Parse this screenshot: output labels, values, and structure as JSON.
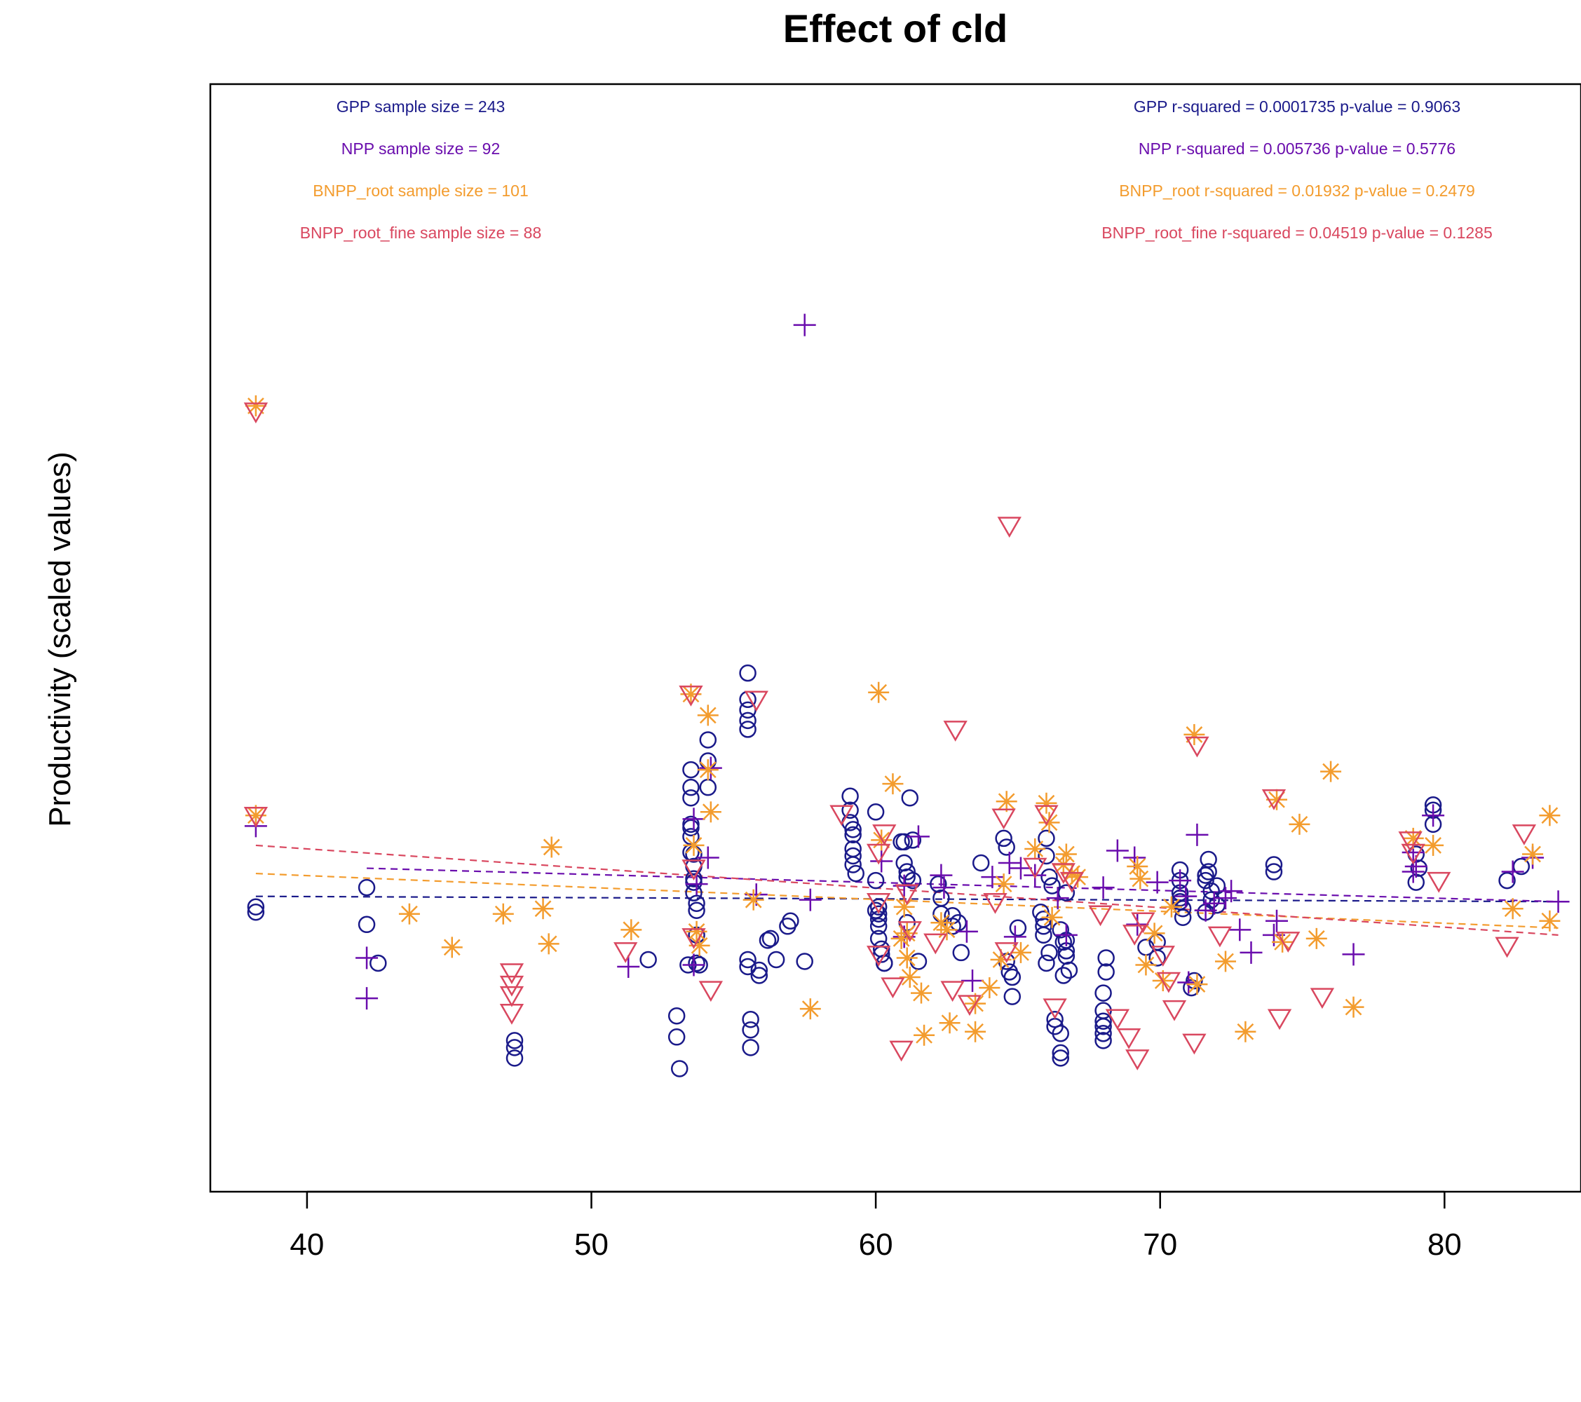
{
  "chart_data": {
    "type": "scatter",
    "title": "Effect of cld",
    "xlabel": "",
    "ylabel": "Productivity (scaled values)",
    "xlim": [
      36.6,
      84.8
    ],
    "ylim": [
      -1.7,
      4.6
    ],
    "xticks": [
      40,
      50,
      60,
      70,
      80
    ],
    "yticks_shown": false,
    "colors": {
      "GPP": "#1A1A8A",
      "NPP": "#6A0DAD",
      "BNPP_root": "#F39C2E",
      "BNPP_root_fine": "#D9475F"
    },
    "stats": {
      "sample_size": [
        {
          "series": "GPP",
          "text": "GPP sample size = 243"
        },
        {
          "series": "NPP",
          "text": "NPP sample size = 92"
        },
        {
          "series": "BNPP_root",
          "text": "BNPP_root sample size = 101"
        },
        {
          "series": "BNPP_root_fine",
          "text": "BNPP_root_fine sample size = 88"
        }
      ],
      "fit": [
        {
          "series": "GPP",
          "text": "GPP r-squared =  0.0001735 p-value =  0.9063"
        },
        {
          "series": "NPP",
          "text": "NPP r-squared =  0.005736 p-value =  0.5776"
        },
        {
          "series": "BNPP_root",
          "text": "BNPP_root r-squared =  0.01932 p-value =  0.2479"
        },
        {
          "series": "BNPP_root_fine",
          "text": "BNPP_root_fine r-squared =  0.04519 p-value =  0.1285"
        }
      ]
    },
    "fit_lines": [
      {
        "series": "GPP",
        "x": [
          38.2,
          84.0
        ],
        "y": [
          -0.02,
          -0.05
        ]
      },
      {
        "series": "NPP",
        "x": [
          42.1,
          84.0
        ],
        "y": [
          0.14,
          -0.05
        ]
      },
      {
        "series": "BNPP_root",
        "x": [
          38.2,
          84.0
        ],
        "y": [
          0.11,
          -0.2
        ]
      },
      {
        "series": "BNPP_root_fine",
        "x": [
          38.2,
          84.0
        ],
        "y": [
          0.27,
          -0.24
        ]
      }
    ],
    "series": [
      {
        "name": "GPP",
        "marker": "circle",
        "x": [
          38.2,
          38.2,
          42.1,
          42.1,
          42.5,
          47.3,
          47.3,
          47.3,
          52.0,
          53.0,
          53.0,
          53.1,
          53.4,
          53.5,
          53.5,
          53.5,
          53.5,
          53.5,
          53.5,
          53.5,
          53.6,
          53.6,
          53.6,
          53.6,
          53.6,
          53.7,
          53.7,
          53.7,
          53.7,
          53.8,
          54.1,
          54.1,
          54.1,
          55.5,
          55.5,
          55.5,
          55.5,
          55.5,
          55.5,
          55.5,
          55.6,
          55.6,
          55.6,
          55.9,
          55.9,
          56.2,
          56.3,
          56.5,
          56.9,
          57.0,
          57.5,
          59.1,
          59.1,
          59.1,
          59.2,
          59.2,
          59.2,
          59.2,
          59.2,
          59.3,
          60.0,
          60.0,
          60.0,
          60.1,
          60.1,
          60.1,
          60.1,
          60.1,
          60.2,
          60.2,
          60.3,
          60.3,
          60.9,
          61.0,
          61.0,
          61.1,
          61.1,
          61.1,
          61.2,
          61.3,
          61.3,
          61.5,
          62.2,
          62.3,
          62.3,
          62.7,
          62.7,
          62.9,
          63.0,
          63.7,
          64.5,
          64.6,
          64.6,
          64.7,
          64.8,
          64.8,
          65.0,
          65.8,
          65.9,
          65.9,
          65.9,
          66.0,
          66.0,
          66.0,
          66.1,
          66.1,
          66.2,
          66.3,
          66.3,
          66.5,
          66.5,
          66.5,
          66.5,
          66.6,
          66.6,
          66.7,
          66.7,
          66.7,
          66.7,
          66.8,
          68.0,
          68.0,
          68.0,
          68.0,
          68.0,
          68.0,
          68.1,
          68.1,
          69.5,
          69.9,
          69.9,
          70.7,
          70.7,
          70.7,
          70.7,
          70.7,
          70.8,
          70.8,
          71.1,
          71.2,
          71.6,
          71.6,
          71.6,
          71.7,
          71.7,
          71.8,
          71.8,
          72.0,
          72.0,
          74.0,
          74.0,
          79.0,
          79.0,
          79.1,
          79.6,
          79.6,
          79.6,
          82.2,
          82.7
        ],
        "y": [
          -0.08,
          -0.11,
          0.03,
          -0.18,
          -0.4,
          -0.84,
          -0.88,
          -0.94,
          -0.38,
          -0.7,
          -0.82,
          -1.0,
          -0.41,
          0.7,
          0.6,
          0.54,
          0.39,
          0.37,
          0.32,
          0.23,
          0.22,
          0.15,
          0.08,
          0.06,
          0.0,
          -0.06,
          -0.1,
          -0.24,
          -0.4,
          -0.41,
          0.87,
          0.75,
          0.6,
          1.25,
          1.1,
          1.04,
          0.98,
          0.93,
          -0.38,
          -0.42,
          -0.88,
          -0.78,
          -0.72,
          -0.44,
          -0.47,
          -0.27,
          -0.26,
          -0.38,
          -0.19,
          -0.16,
          -0.39,
          0.55,
          0.47,
          0.4,
          0.36,
          0.33,
          0.25,
          0.21,
          0.16,
          0.11,
          0.46,
          0.07,
          -0.1,
          -0.08,
          -0.12,
          -0.15,
          -0.19,
          -0.26,
          -0.32,
          -0.35,
          -0.4,
          -0.4,
          0.29,
          0.29,
          0.17,
          0.12,
          0.09,
          -0.17,
          0.54,
          0.3,
          0.07,
          -0.39,
          0.05,
          -0.03,
          -0.12,
          -0.13,
          -0.19,
          -0.17,
          -0.34,
          0.17,
          0.31,
          0.26,
          -0.39,
          -0.45,
          -0.48,
          -0.59,
          -0.2,
          -0.11,
          -0.15,
          -0.19,
          -0.24,
          0.31,
          0.21,
          -0.4,
          -0.34,
          0.09,
          0.04,
          -0.72,
          -0.76,
          -0.8,
          -0.91,
          -0.94,
          -0.21,
          -0.28,
          -0.47,
          0.0,
          -0.33,
          -0.27,
          -0.36,
          -0.44,
          -0.57,
          -0.67,
          -0.73,
          -0.76,
          -0.8,
          -0.84,
          -0.37,
          -0.45,
          -0.31,
          -0.28,
          -0.37,
          0.07,
          0.13,
          0.0,
          -0.03,
          -0.05,
          -0.09,
          -0.14,
          -0.54,
          -0.5,
          -0.11,
          0.07,
          0.1,
          0.12,
          0.19,
          0.01,
          -0.04,
          0.04,
          -0.07,
          0.12,
          0.16,
          0.22,
          0.06,
          0.14,
          0.39,
          0.47,
          0.5,
          0.07,
          0.15
        ],
        "note": "approximate"
      },
      {
        "name": "NPP",
        "marker": "plus",
        "x": [
          38.2,
          42.1,
          42.1,
          51.3,
          53.6,
          53.6,
          53.7,
          54.1,
          54.2,
          55.8,
          57.5,
          57.7,
          60.2,
          61.0,
          61.0,
          61.5,
          62.3,
          62.4,
          63.2,
          63.4,
          64.1,
          64.7,
          64.9,
          65.1,
          65.6,
          66.4,
          66.7,
          68.0,
          68.5,
          69.1,
          69.2,
          69.9,
          70.7,
          70.9,
          71.0,
          71.3,
          71.6,
          71.9,
          72.3,
          72.5,
          72.8,
          73.2,
          74.0,
          74.1,
          76.8,
          78.9,
          78.9,
          79.0,
          79.6,
          82.4,
          83.1,
          84.0
        ],
        "y": [
          0.38,
          -0.37,
          -0.6,
          -0.42,
          -0.41,
          0.42,
          0.05,
          0.2,
          0.71,
          -0.01,
          3.23,
          -0.04,
          0.18,
          0.04,
          -0.25,
          0.32,
          0.1,
          0.03,
          -0.22,
          -0.5,
          0.09,
          0.17,
          -0.25,
          0.14,
          0.1,
          -0.03,
          -0.24,
          0.03,
          0.24,
          0.2,
          -0.18,
          0.06,
          0.07,
          -0.02,
          -0.51,
          0.33,
          -0.1,
          -0.06,
          -0.03,
          0.01,
          -0.21,
          -0.34,
          -0.24,
          -0.16,
          -0.35,
          0.12,
          0.23,
          0.15,
          0.44,
          0.12,
          0.2,
          -0.05
        ],
        "note": "approximate"
      },
      {
        "name": "BNPP_root",
        "marker": "asterisk",
        "x": [
          38.2,
          38.2,
          43.6,
          45.1,
          46.9,
          48.3,
          48.5,
          48.6,
          51.4,
          53.5,
          53.6,
          53.7,
          53.8,
          54.1,
          54.1,
          54.2,
          55.7,
          57.7,
          60.1,
          60.2,
          60.6,
          60.9,
          61.0,
          61.1,
          61.1,
          61.2,
          61.6,
          61.7,
          62.3,
          62.5,
          62.6,
          63.5,
          63.5,
          64.0,
          64.4,
          64.5,
          64.6,
          65.1,
          65.6,
          66.0,
          66.1,
          66.2,
          66.6,
          66.7,
          66.9,
          67.1,
          69.2,
          69.3,
          69.5,
          69.8,
          70.1,
          70.4,
          71.2,
          71.3,
          72.3,
          73.0,
          74.1,
          74.3,
          74.9,
          75.5,
          76.0,
          76.8,
          78.9,
          79.6,
          82.4,
          83.1,
          83.7,
          83.7
        ],
        "y": [
          2.77,
          0.44,
          -0.12,
          -0.31,
          -0.12,
          -0.09,
          -0.29,
          0.26,
          -0.21,
          1.13,
          0.27,
          -0.22,
          -0.3,
          1.01,
          0.7,
          0.46,
          -0.04,
          -0.66,
          1.14,
          0.3,
          0.62,
          -0.26,
          -0.08,
          -0.37,
          -0.23,
          -0.48,
          -0.57,
          -0.81,
          -0.17,
          -0.21,
          -0.74,
          -0.63,
          -0.79,
          -0.54,
          -0.38,
          0.05,
          0.52,
          -0.34,
          0.25,
          0.51,
          0.4,
          -0.14,
          0.16,
          0.22,
          0.11,
          0.09,
          0.15,
          0.08,
          -0.41,
          -0.23,
          -0.5,
          -0.08,
          0.9,
          -0.52,
          -0.39,
          -0.79,
          0.53,
          -0.28,
          0.39,
          -0.26,
          0.69,
          -0.65,
          0.31,
          0.27,
          -0.09,
          0.22,
          0.44,
          -0.16
        ],
        "note": "approximate"
      },
      {
        "name": "BNPP_root_fine",
        "marker": "triangle-down",
        "x": [
          38.2,
          38.2,
          47.2,
          47.2,
          47.2,
          47.2,
          51.2,
          53.5,
          53.6,
          53.6,
          54.2,
          55.8,
          58.8,
          60.1,
          60.1,
          60.1,
          60.3,
          60.6,
          60.9,
          61.1,
          61.2,
          62.1,
          62.7,
          62.8,
          63.3,
          64.2,
          64.5,
          64.6,
          64.7,
          65.6,
          66.0,
          66.3,
          66.6,
          66.9,
          67.9,
          68.5,
          68.9,
          69.1,
          69.2,
          69.4,
          70.1,
          70.3,
          70.5,
          71.3,
          71.2,
          72.1,
          74.0,
          74.2,
          74.5,
          75.7,
          78.8,
          78.9,
          79.8,
          82.2,
          82.8
        ],
        "y": [
          2.74,
          0.44,
          -0.45,
          -0.52,
          -0.58,
          -0.68,
          -0.33,
          1.13,
          0.14,
          -0.25,
          -0.55,
          1.1,
          0.45,
          0.23,
          -0.05,
          -0.35,
          0.34,
          -0.53,
          -0.89,
          0.0,
          -0.21,
          -0.28,
          -0.55,
          0.93,
          -0.63,
          -0.05,
          0.43,
          -0.33,
          2.09,
          0.15,
          0.45,
          -0.65,
          0.12,
          0.07,
          -0.12,
          -0.71,
          -0.82,
          -0.23,
          -0.94,
          -0.16,
          -0.35,
          -0.5,
          -0.66,
          0.84,
          -0.85,
          -0.24,
          0.54,
          -0.71,
          -0.27,
          -0.59,
          0.3,
          0.23,
          0.07,
          -0.3,
          0.34
        ],
        "note": "approximate"
      }
    ]
  }
}
